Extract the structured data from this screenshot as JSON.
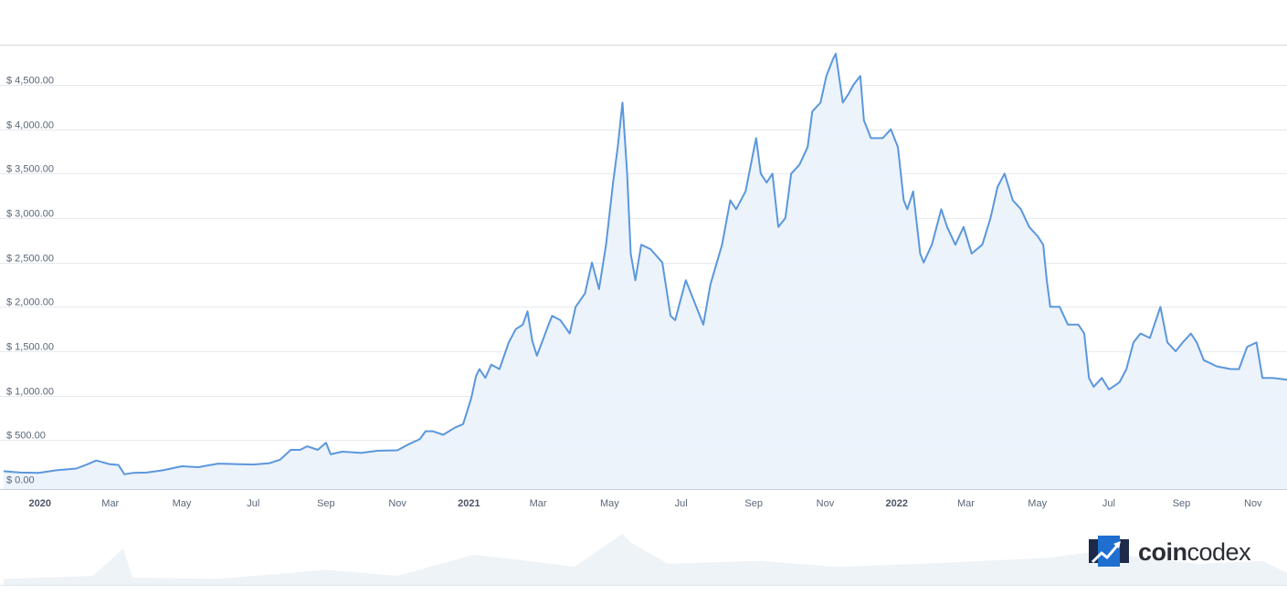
{
  "brand": {
    "name_part1": "coin",
    "name_part2": "codex",
    "logo_icon": "coincodex-logo-icon",
    "accent_color": "#1f6fd1",
    "dark_color": "#1e2a4a"
  },
  "colors": {
    "line": "#5b97dc",
    "area": "#eaf2fb",
    "grid": "#e6e9ee"
  },
  "chart_data": {
    "type": "area",
    "title": "",
    "xlabel": "",
    "ylabel": "",
    "ylim": [
      0,
      5000
    ],
    "grid": true,
    "y_ticks": [
      {
        "value": 0,
        "label": "$ 0.00"
      },
      {
        "value": 500,
        "label": "$ 500.00"
      },
      {
        "value": 1000,
        "label": "$ 1,000.00"
      },
      {
        "value": 1500,
        "label": "$ 1,500.00"
      },
      {
        "value": 2000,
        "label": "$ 2,000.00"
      },
      {
        "value": 2500,
        "label": "$ 2,500.00"
      },
      {
        "value": 3000,
        "label": "$ 3,000.00"
      },
      {
        "value": 3500,
        "label": "$ 3,500.00"
      },
      {
        "value": 4000,
        "label": "$ 4,000.00"
      },
      {
        "value": 4500,
        "label": "$ 4,500.00"
      }
    ],
    "x_range": [
      "2019-12-01",
      "2022-11-30"
    ],
    "x_ticks": [
      {
        "date": "2020-01-01",
        "label": "2020",
        "major": true
      },
      {
        "date": "2020-03-01",
        "label": "Mar",
        "major": false
      },
      {
        "date": "2020-05-01",
        "label": "May",
        "major": false
      },
      {
        "date": "2020-07-01",
        "label": "Jul",
        "major": false
      },
      {
        "date": "2020-09-01",
        "label": "Sep",
        "major": false
      },
      {
        "date": "2020-11-01",
        "label": "Nov",
        "major": false
      },
      {
        "date": "2021-01-01",
        "label": "2021",
        "major": true
      },
      {
        "date": "2021-03-01",
        "label": "Mar",
        "major": false
      },
      {
        "date": "2021-05-01",
        "label": "May",
        "major": false
      },
      {
        "date": "2021-07-01",
        "label": "Jul",
        "major": false
      },
      {
        "date": "2021-09-01",
        "label": "Sep",
        "major": false
      },
      {
        "date": "2021-11-01",
        "label": "Nov",
        "major": false
      },
      {
        "date": "2022-01-01",
        "label": "2022",
        "major": true
      },
      {
        "date": "2022-03-01",
        "label": "Mar",
        "major": false
      },
      {
        "date": "2022-05-01",
        "label": "May",
        "major": false
      },
      {
        "date": "2022-07-01",
        "label": "Jul",
        "major": false
      },
      {
        "date": "2022-09-01",
        "label": "Sep",
        "major": false
      },
      {
        "date": "2022-11-01",
        "label": "Nov",
        "major": false
      }
    ],
    "series": [
      {
        "values": [
          [
            "2019-12-01",
            150
          ],
          [
            "2019-12-15",
            135
          ],
          [
            "2019-12-31",
            130
          ],
          [
            "2020-01-15",
            160
          ],
          [
            "2020-02-01",
            180
          ],
          [
            "2020-02-10",
            225
          ],
          [
            "2020-02-18",
            270
          ],
          [
            "2020-02-29",
            230
          ],
          [
            "2020-03-08",
            220
          ],
          [
            "2020-03-13",
            115
          ],
          [
            "2020-03-20",
            130
          ],
          [
            "2020-04-01",
            135
          ],
          [
            "2020-04-15",
            160
          ],
          [
            "2020-05-01",
            205
          ],
          [
            "2020-05-15",
            195
          ],
          [
            "2020-06-01",
            235
          ],
          [
            "2020-06-15",
            230
          ],
          [
            "2020-07-01",
            225
          ],
          [
            "2020-07-15",
            240
          ],
          [
            "2020-07-24",
            280
          ],
          [
            "2020-08-02",
            390
          ],
          [
            "2020-08-10",
            390
          ],
          [
            "2020-08-16",
            430
          ],
          [
            "2020-08-25",
            390
          ],
          [
            "2020-09-01",
            470
          ],
          [
            "2020-09-05",
            340
          ],
          [
            "2020-09-15",
            370
          ],
          [
            "2020-10-01",
            355
          ],
          [
            "2020-10-15",
            380
          ],
          [
            "2020-11-01",
            385
          ],
          [
            "2020-11-10",
            450
          ],
          [
            "2020-11-20",
            510
          ],
          [
            "2020-11-25",
            600
          ],
          [
            "2020-12-01",
            600
          ],
          [
            "2020-12-10",
            560
          ],
          [
            "2020-12-20",
            640
          ],
          [
            "2020-12-27",
            680
          ],
          [
            "2021-01-03",
            975
          ],
          [
            "2021-01-07",
            1220
          ],
          [
            "2021-01-10",
            1300
          ],
          [
            "2021-01-15",
            1200
          ],
          [
            "2021-01-20",
            1350
          ],
          [
            "2021-01-27",
            1300
          ],
          [
            "2021-02-04",
            1600
          ],
          [
            "2021-02-10",
            1750
          ],
          [
            "2021-02-16",
            1800
          ],
          [
            "2021-02-20",
            1950
          ],
          [
            "2021-02-24",
            1620
          ],
          [
            "2021-02-28",
            1450
          ],
          [
            "2021-03-10",
            1800
          ],
          [
            "2021-03-13",
            1900
          ],
          [
            "2021-03-20",
            1850
          ],
          [
            "2021-03-28",
            1700
          ],
          [
            "2021-04-02",
            2000
          ],
          [
            "2021-04-10",
            2150
          ],
          [
            "2021-04-16",
            2500
          ],
          [
            "2021-04-22",
            2200
          ],
          [
            "2021-04-28",
            2700
          ],
          [
            "2021-05-04",
            3400
          ],
          [
            "2021-05-08",
            3800
          ],
          [
            "2021-05-12",
            4300
          ],
          [
            "2021-05-16",
            3500
          ],
          [
            "2021-05-19",
            2600
          ],
          [
            "2021-05-23",
            2300
          ],
          [
            "2021-05-28",
            2700
          ],
          [
            "2021-06-05",
            2650
          ],
          [
            "2021-06-15",
            2500
          ],
          [
            "2021-06-22",
            1900
          ],
          [
            "2021-06-26",
            1850
          ],
          [
            "2021-07-05",
            2300
          ],
          [
            "2021-07-14",
            2000
          ],
          [
            "2021-07-20",
            1800
          ],
          [
            "2021-07-26",
            2250
          ],
          [
            "2021-08-05",
            2700
          ],
          [
            "2021-08-12",
            3200
          ],
          [
            "2021-08-17",
            3100
          ],
          [
            "2021-08-25",
            3300
          ],
          [
            "2021-09-03",
            3900
          ],
          [
            "2021-09-07",
            3500
          ],
          [
            "2021-09-12",
            3400
          ],
          [
            "2021-09-17",
            3500
          ],
          [
            "2021-09-22",
            2900
          ],
          [
            "2021-09-28",
            3000
          ],
          [
            "2021-10-03",
            3500
          ],
          [
            "2021-10-10",
            3600
          ],
          [
            "2021-10-17",
            3800
          ],
          [
            "2021-10-21",
            4200
          ],
          [
            "2021-10-28",
            4300
          ],
          [
            "2021-11-02",
            4600
          ],
          [
            "2021-11-08",
            4800
          ],
          [
            "2021-11-10",
            4850
          ],
          [
            "2021-11-16",
            4300
          ],
          [
            "2021-11-21",
            4400
          ],
          [
            "2021-11-25",
            4500
          ],
          [
            "2021-12-01",
            4600
          ],
          [
            "2021-12-04",
            4100
          ],
          [
            "2021-12-10",
            3900
          ],
          [
            "2021-12-20",
            3900
          ],
          [
            "2021-12-27",
            4000
          ],
          [
            "2022-01-02",
            3800
          ],
          [
            "2022-01-07",
            3200
          ],
          [
            "2022-01-10",
            3100
          ],
          [
            "2022-01-15",
            3300
          ],
          [
            "2022-01-21",
            2600
          ],
          [
            "2022-01-24",
            2500
          ],
          [
            "2022-01-31",
            2700
          ],
          [
            "2022-02-08",
            3100
          ],
          [
            "2022-02-13",
            2900
          ],
          [
            "2022-02-20",
            2700
          ],
          [
            "2022-02-27",
            2900
          ],
          [
            "2022-03-06",
            2600
          ],
          [
            "2022-03-15",
            2700
          ],
          [
            "2022-03-22",
            3000
          ],
          [
            "2022-03-28",
            3350
          ],
          [
            "2022-04-03",
            3500
          ],
          [
            "2022-04-10",
            3200
          ],
          [
            "2022-04-17",
            3100
          ],
          [
            "2022-04-24",
            2900
          ],
          [
            "2022-05-01",
            2800
          ],
          [
            "2022-05-06",
            2700
          ],
          [
            "2022-05-09",
            2300
          ],
          [
            "2022-05-12",
            2000
          ],
          [
            "2022-05-20",
            2000
          ],
          [
            "2022-05-27",
            1800
          ],
          [
            "2022-06-05",
            1800
          ],
          [
            "2022-06-10",
            1700
          ],
          [
            "2022-06-14",
            1200
          ],
          [
            "2022-06-18",
            1100
          ],
          [
            "2022-06-25",
            1200
          ],
          [
            "2022-07-01",
            1070
          ],
          [
            "2022-07-10",
            1150
          ],
          [
            "2022-07-16",
            1300
          ],
          [
            "2022-07-22",
            1600
          ],
          [
            "2022-07-28",
            1700
          ],
          [
            "2022-08-05",
            1650
          ],
          [
            "2022-08-14",
            2000
          ],
          [
            "2022-08-20",
            1600
          ],
          [
            "2022-08-27",
            1500
          ],
          [
            "2022-09-02",
            1600
          ],
          [
            "2022-09-09",
            1700
          ],
          [
            "2022-09-14",
            1600
          ],
          [
            "2022-09-20",
            1400
          ],
          [
            "2022-10-01",
            1330
          ],
          [
            "2022-10-13",
            1300
          ],
          [
            "2022-10-20",
            1300
          ],
          [
            "2022-10-27",
            1550
          ],
          [
            "2022-11-04",
            1600
          ],
          [
            "2022-11-09",
            1200
          ],
          [
            "2022-11-18",
            1200
          ],
          [
            "2022-11-30",
            1180
          ]
        ]
      }
    ],
    "volume_series": [
      [
        "2019-12-01",
        0.1
      ],
      [
        "2020-02-15",
        0.15
      ],
      [
        "2020-03-12",
        0.6
      ],
      [
        "2020-03-20",
        0.12
      ],
      [
        "2020-06-01",
        0.1
      ],
      [
        "2020-09-01",
        0.25
      ],
      [
        "2020-11-01",
        0.15
      ],
      [
        "2021-01-05",
        0.5
      ],
      [
        "2021-02-20",
        0.4
      ],
      [
        "2021-04-01",
        0.3
      ],
      [
        "2021-05-12",
        0.85
      ],
      [
        "2021-05-19",
        0.7
      ],
      [
        "2021-06-20",
        0.35
      ],
      [
        "2021-09-07",
        0.4
      ],
      [
        "2021-11-10",
        0.3
      ],
      [
        "2022-01-22",
        0.35
      ],
      [
        "2022-05-12",
        0.45
      ],
      [
        "2022-06-18",
        0.55
      ],
      [
        "2022-09-15",
        0.35
      ],
      [
        "2022-11-09",
        0.4
      ],
      [
        "2022-11-30",
        0.2
      ]
    ]
  }
}
